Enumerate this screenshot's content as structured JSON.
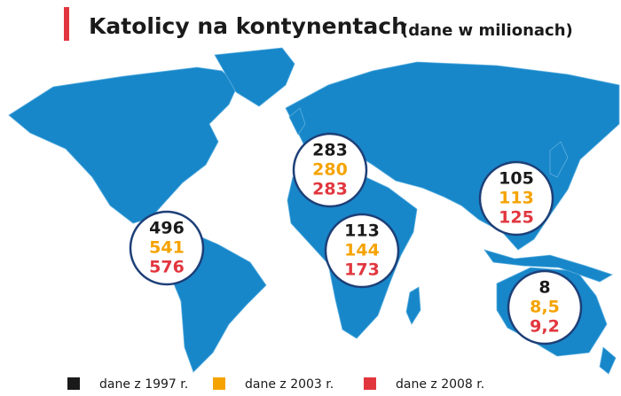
{
  "header": {
    "title": "Katolicy na kontynentach",
    "subtitle": "(dane w milionach)"
  },
  "legend": [
    {
      "name": "dane z 1997 r.",
      "color": "#1a1a1a"
    },
    {
      "name": "dane z 2003 r.",
      "color": "#f5a300"
    },
    {
      "name": "dane z 2008 r.",
      "color": "#e2363f"
    }
  ],
  "regions": [
    {
      "values": [
        496,
        541,
        576
      ]
    },
    {
      "values": [
        283,
        280,
        283
      ]
    },
    {
      "values": [
        113,
        144,
        173
      ]
    },
    {
      "values": [
        105,
        113,
        125
      ]
    },
    {
      "values": [
        8,
        8.5,
        9.2
      ],
      "value_labels": [
        "8",
        "8,5",
        "9,2"
      ]
    }
  ]
}
